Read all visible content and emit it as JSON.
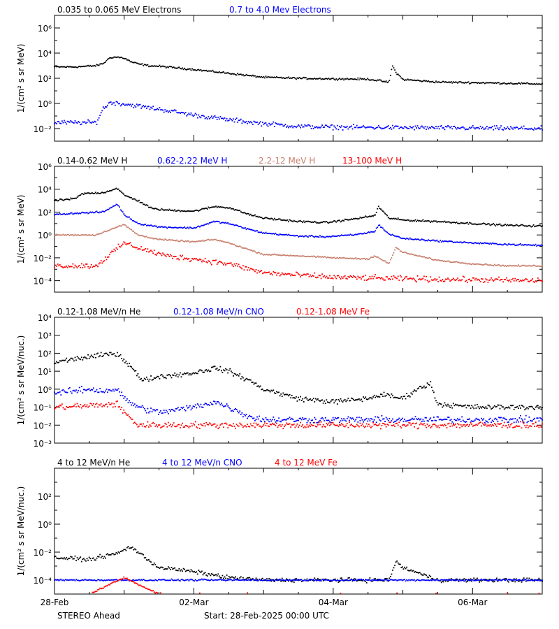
{
  "footer": {
    "left": "STEREO Ahead",
    "start": "Start: 28-Feb-2025 00:00 UTC"
  },
  "x_ticks": [
    "28-Feb",
    "02-Mar",
    "04-Mar",
    "06-Mar"
  ],
  "x_tick_days": [
    0,
    2,
    4,
    6
  ],
  "x_range_days": [
    0,
    7
  ],
  "colors": {
    "black": "#000000",
    "blue": "#0000ff",
    "tan": "#c87f6e",
    "red": "#ff0000"
  },
  "chart_data": [
    {
      "type": "scatter",
      "ylabel": "1/(cm² s sr MeV)",
      "yscale": "log",
      "ylim": [
        0.001,
        10000000
      ],
      "ytick_exponents": [
        -2,
        0,
        2,
        4,
        6
      ],
      "legend": [
        "0.035 to 0.065 MeV Electrons",
        "0.7 to 4.0 Mev Electrons"
      ],
      "series": [
        {
          "name": "0.035 to 0.065 MeV Electrons",
          "color": "black",
          "x_days": [
            0,
            0.3,
            0.6,
            0.7,
            0.8,
            0.9,
            1.0,
            1.1,
            1.2,
            1.35,
            1.5,
            2.0,
            2.5,
            3.0,
            3.5,
            4.0,
            4.5,
            4.7,
            4.8,
            4.85,
            4.9,
            5.0,
            5.5,
            6.0,
            6.5,
            7.0
          ],
          "y": [
            800,
            800,
            1000,
            1500,
            4500,
            4800,
            4000,
            2000,
            1400,
            1000,
            900,
            500,
            250,
            120,
            100,
            90,
            85,
            60,
            45,
            1000,
            300,
            80,
            50,
            45,
            40,
            35
          ],
          "noise": 0.06
        },
        {
          "name": "0.7 to 4.0 Mev Electrons",
          "color": "blue",
          "x_days": [
            0,
            0.6,
            0.7,
            0.8,
            1.0,
            1.5,
            2.0,
            2.5,
            3.0,
            3.5,
            4.0,
            5.0,
            6.0,
            7.0
          ],
          "y": [
            0.03,
            0.03,
            0.4,
            1.2,
            0.9,
            0.35,
            0.12,
            0.05,
            0.025,
            0.015,
            0.013,
            0.012,
            0.011,
            0.01
          ],
          "noise": 0.15
        }
      ]
    },
    {
      "type": "scatter",
      "ylabel": "1/(cm² s sr MeV)",
      "yscale": "log",
      "ylim": [
        1e-05,
        1000000
      ],
      "ytick_exponents": [
        -4,
        -2,
        0,
        2,
        4,
        6
      ],
      "legend": [
        "0.14-0.62 MeV H",
        "0.62-2.22 MeV H",
        "2.2-12 MeV H",
        "13-100 MeV H"
      ],
      "series": [
        {
          "name": "0.14-0.62 MeV H",
          "color": "black",
          "x_days": [
            0,
            0.3,
            0.4,
            0.7,
            0.9,
            1.0,
            1.2,
            1.4,
            1.6,
            2.0,
            2.3,
            2.5,
            2.8,
            3.0,
            3.5,
            3.9,
            4.3,
            4.6,
            4.65,
            4.8,
            5.0,
            5.5,
            6.0,
            6.5,
            7.0
          ],
          "y": [
            1000,
            1500,
            4000,
            5000,
            12000,
            3000,
            1000,
            200,
            150,
            120,
            300,
            250,
            60,
            30,
            15,
            12,
            25,
            50,
            300,
            30,
            20,
            15,
            10,
            7,
            6
          ],
          "noise": 0.07
        },
        {
          "name": "0.62-2.22 MeV H",
          "color": "blue",
          "x_days": [
            0,
            0.3,
            0.7,
            0.9,
            1.0,
            1.2,
            1.5,
            2.0,
            2.3,
            2.5,
            2.8,
            3.0,
            3.5,
            3.9,
            4.3,
            4.6,
            4.65,
            4.8,
            5.0,
            5.5,
            6.0,
            6.5,
            7.0
          ],
          "y": [
            60,
            80,
            100,
            500,
            60,
            10,
            5,
            4,
            15,
            10,
            3,
            1.5,
            0.8,
            0.7,
            1,
            2,
            8,
            1.2,
            0.5,
            0.3,
            0.2,
            0.15,
            0.12
          ],
          "noise": 0.06
        },
        {
          "name": "2.2-12 MeV H",
          "color": "tan",
          "x_days": [
            0,
            0.6,
            0.8,
            1.0,
            1.2,
            1.5,
            2.0,
            2.3,
            2.5,
            2.8,
            3.0,
            3.5,
            4.0,
            4.5,
            4.6,
            4.8,
            4.9,
            5.0,
            5.5,
            6.0,
            6.5,
            7.0
          ],
          "y": [
            1,
            1,
            3,
            8,
            1,
            0.4,
            0.25,
            0.4,
            0.2,
            0.05,
            0.02,
            0.015,
            0.01,
            0.008,
            0.015,
            0.003,
            0.08,
            0.03,
            0.006,
            0.003,
            0.002,
            0.002
          ],
          "noise": 0.05
        },
        {
          "name": "13-100 MeV H",
          "color": "red",
          "x_days": [
            0,
            0.6,
            0.8,
            1.0,
            1.3,
            1.6,
            2.0,
            2.5,
            3.0,
            3.5,
            4.0,
            5.0,
            6.0,
            7.0
          ],
          "y": [
            0.002,
            0.002,
            0.02,
            0.2,
            0.05,
            0.015,
            0.008,
            0.003,
            0.0005,
            0.0003,
            0.0002,
            0.00015,
            0.00012,
            0.0001
          ],
          "noise": 0.2
        }
      ]
    },
    {
      "type": "scatter",
      "ylabel": "1/(cm² s sr MeV/nuc.)",
      "yscale": "log",
      "ylim": [
        0.001,
        10000
      ],
      "ytick_exponents": [
        -3,
        -2,
        -1,
        0,
        1,
        2,
        3,
        4
      ],
      "legend": [
        "0.12-1.08 MeV/n He",
        "0.12-1.08 MeV/n CNO",
        "0.12-1.08 MeV Fe"
      ],
      "series": [
        {
          "name": "0.12-1.08 MeV/n He",
          "color": "black",
          "x_days": [
            0,
            0.3,
            0.5,
            0.7,
            0.9,
            1.0,
            1.1,
            1.25,
            1.5,
            2.0,
            2.3,
            2.5,
            2.8,
            3.0,
            3.5,
            4.0,
            4.5,
            4.7,
            5.0,
            5.2,
            5.4,
            5.5,
            6.0,
            6.5,
            7.0
          ],
          "y": [
            30,
            50,
            60,
            80,
            100,
            40,
            20,
            3,
            5,
            8,
            15,
            10,
            3,
            1,
            0.3,
            0.2,
            0.3,
            0.5,
            0.3,
            1,
            2,
            0.15,
            0.1,
            0.1,
            0.1
          ],
          "noise": 0.12
        },
        {
          "name": "0.12-1.08 MeV/n CNO",
          "color": "blue",
          "x_days": [
            0,
            0.3,
            0.5,
            0.7,
            0.9,
            1.0,
            1.2,
            1.5,
            2.0,
            2.3,
            2.5,
            2.8,
            3.0,
            3.5,
            4.0,
            5.0,
            6.0,
            7.0
          ],
          "y": [
            0.6,
            0.8,
            1,
            0.8,
            1,
            0.3,
            0.1,
            0.05,
            0.1,
            0.2,
            0.1,
            0.03,
            0.02,
            0.02,
            0.02,
            0.02,
            0.02,
            0.02
          ],
          "noise": 0.15
        },
        {
          "name": "0.12-1.08 MeV Fe",
          "color": "red",
          "x_days": [
            0,
            0.5,
            0.9,
            1.0,
            1.2,
            2.0,
            3.0,
            4.0,
            5.0,
            6.0,
            7.0
          ],
          "y": [
            0.1,
            0.12,
            0.15,
            0.05,
            0.01,
            0.01,
            0.01,
            0.01,
            0.01,
            0.01,
            0.01
          ],
          "noise": 0.15
        }
      ]
    },
    {
      "type": "scatter",
      "ylabel": "1/(cm² s sr MeV/nuc.)",
      "yscale": "log",
      "ylim": [
        1e-05,
        10000
      ],
      "ytick_exponents": [
        -4,
        -2,
        0,
        2
      ],
      "legend": [
        "4 to 12 MeV/n He",
        "4 to 12 MeV/n CNO",
        "4 to 12 MeV Fe"
      ],
      "series": [
        {
          "name": "4 to 12 MeV/n He",
          "color": "black",
          "x_days": [
            0,
            0.5,
            0.9,
            1.1,
            1.3,
            1.5,
            2.0,
            2.5,
            3.0,
            4.0,
            4.8,
            4.9,
            5.0,
            5.5,
            6.0,
            7.0
          ],
          "y": [
            0.004,
            0.003,
            0.008,
            0.025,
            0.004,
            0.0008,
            0.0004,
            0.00015,
            0.0001,
            0.0001,
            0.0001,
            0.002,
            0.0008,
            0.0001,
            0.0001,
            0.0001
          ],
          "noise": 0.12
        },
        {
          "name": "4 to 12 MeV/n CNO",
          "color": "blue",
          "x_days": [
            0,
            1.0,
            2.0,
            4.0,
            7.0
          ],
          "y": [
            0.0001,
            0.0001,
            0.0001,
            0.0001,
            0.0001
          ],
          "noise": 0.05
        },
        {
          "name": "4 to 12 MeV Fe",
          "color": "red",
          "x_days": [
            0,
            0.5,
            1.0,
            1.5,
            2.0,
            4.0,
            7.0
          ],
          "y": [
            1e-05,
            1e-05,
            0.00015,
            1e-05,
            1e-05,
            1e-05,
            1e-05
          ],
          "noise": 0.05
        }
      ]
    }
  ]
}
